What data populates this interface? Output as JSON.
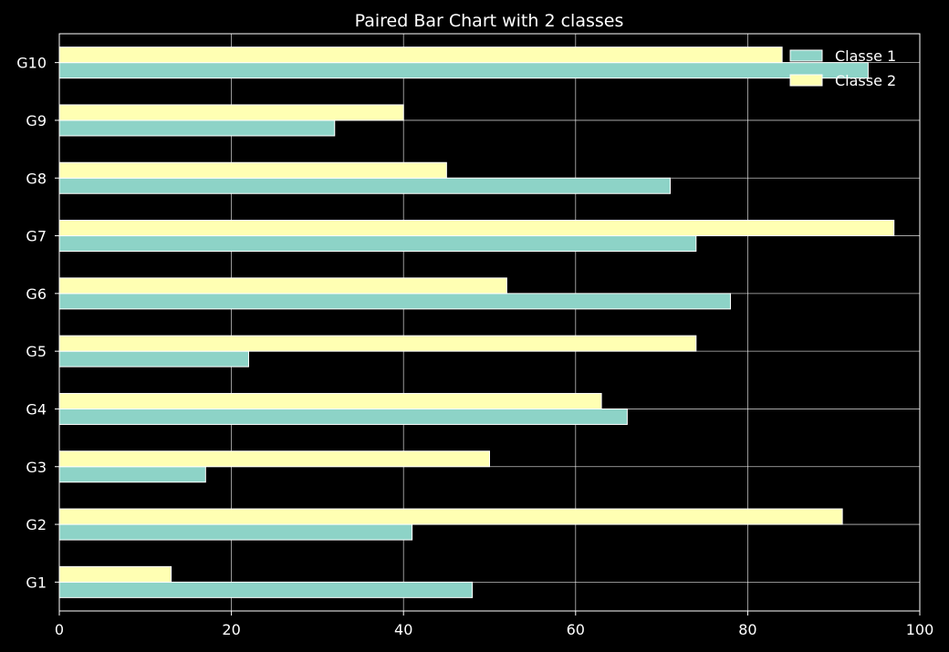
{
  "chart_data": {
    "type": "bar",
    "orientation": "horizontal",
    "title": "Paired Bar Chart with 2 classes",
    "xlabel": "",
    "ylabel": "",
    "categories": [
      "G1",
      "G2",
      "G3",
      "G4",
      "G5",
      "G6",
      "G7",
      "G8",
      "G9",
      "G10"
    ],
    "series": [
      {
        "name": "Classe 1",
        "color": "#8dd3c7",
        "values": [
          48,
          41,
          17,
          66,
          22,
          78,
          74,
          71,
          32,
          94
        ]
      },
      {
        "name": "Classe 2",
        "color": "#ffffb3",
        "values": [
          13,
          91,
          50,
          63,
          74,
          52,
          97,
          45,
          40,
          84
        ]
      }
    ],
    "xlim": [
      0,
      100
    ],
    "xticks": [
      "0",
      "20",
      "40",
      "60",
      "80",
      "100"
    ],
    "grid": true,
    "legend_position": "top-right",
    "background": "#000000",
    "foreground": "#ffffff"
  }
}
